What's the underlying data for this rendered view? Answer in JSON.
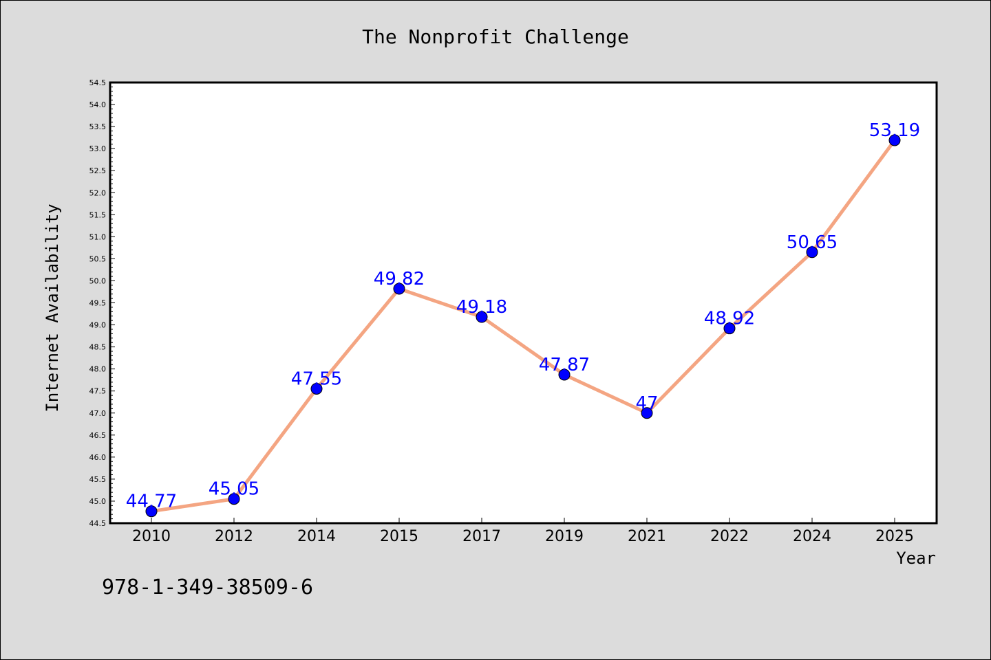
{
  "chart_data": {
    "type": "line",
    "title": "The Nonprofit Challenge",
    "xlabel": "Year",
    "ylabel": "Internet Availability",
    "categories": [
      "2010",
      "2012",
      "2014",
      "2015",
      "2017",
      "2019",
      "2021",
      "2022",
      "2024",
      "2025"
    ],
    "values": [
      44.77,
      45.05,
      47.55,
      49.82,
      49.18,
      47.87,
      47,
      48.92,
      50.65,
      53.19
    ],
    "data_labels": [
      "44.77",
      "45.05",
      "47.55",
      "49.82",
      "49.18",
      "47.87",
      "47",
      "48.92",
      "50.65",
      "53.19"
    ],
    "ylim": [
      44.5,
      54.5
    ],
    "yticks": [
      "44.5",
      "45.0",
      "45.5",
      "46.0",
      "46.5",
      "47.0",
      "47.5",
      "48.0",
      "48.5",
      "49.0",
      "49.5",
      "50.0",
      "50.5",
      "51.0",
      "51.5",
      "52.0",
      "52.5",
      "53.0",
      "53.5",
      "54.0",
      "54.5"
    ],
    "grid": false,
    "legend": "none",
    "line_color": "#f4a582",
    "marker_color": "#0000ff",
    "label_color": "#0000ff"
  },
  "footnote": "978-1-349-38509-6"
}
